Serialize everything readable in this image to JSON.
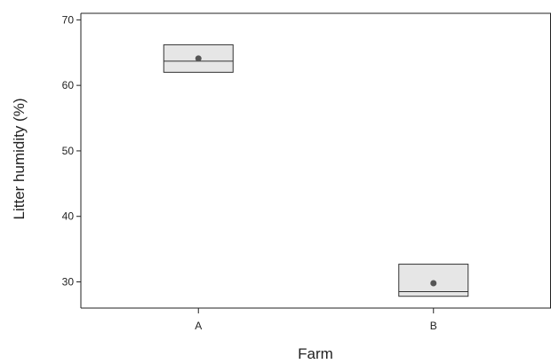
{
  "chart_data": {
    "type": "box",
    "title": "",
    "xlabel": "Farm",
    "ylabel": "Litter humidity (%)",
    "ylim": [
      26,
      71
    ],
    "yticks": [
      30,
      40,
      50,
      60,
      70
    ],
    "categories": [
      "A",
      "B"
    ],
    "boxes": [
      {
        "category": "A",
        "min": 62,
        "q1": 62,
        "median": 63.7,
        "q3": 66.2,
        "max": 66.2,
        "mean": 64.1
      },
      {
        "category": "B",
        "min": 27.8,
        "q1": 27.8,
        "median": 28.5,
        "q3": 32.7,
        "max": 32.7,
        "mean": 29.8
      }
    ],
    "grid": false,
    "legend": "none",
    "colors": {
      "box_fill": "#e6e6e6",
      "box_stroke": "#333333",
      "mean_marker": "#555555",
      "axis": "#222222"
    }
  }
}
